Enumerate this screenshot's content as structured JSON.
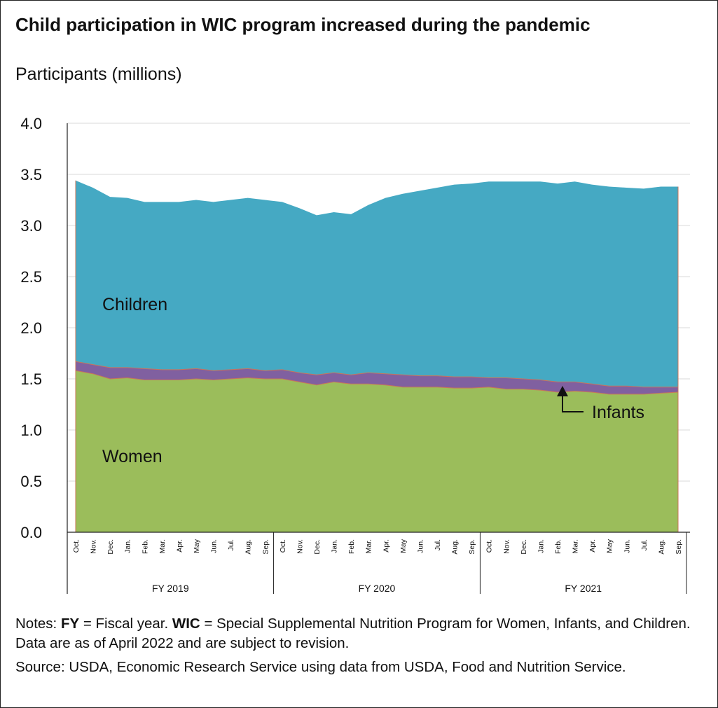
{
  "title": "Child participation in WIC program increased during the pandemic",
  "subtitle": "Participants (millions)",
  "chart_data": {
    "type": "area",
    "stacked": true,
    "ylim": [
      0,
      4.0
    ],
    "yticks": [
      "0.0",
      "0.5",
      "1.0",
      "1.5",
      "2.0",
      "2.5",
      "3.0",
      "3.5",
      "4.0"
    ],
    "grid": true,
    "categories": [
      "Oct.",
      "Nov.",
      "Dec.",
      "Jan.",
      "Feb.",
      "Mar.",
      "Apr.",
      "May",
      "Jun.",
      "Jul.",
      "Aug.",
      "Sep.",
      "Oct.",
      "Nov.",
      "Dec.",
      "Jan.",
      "Feb.",
      "Mar.",
      "Apr.",
      "May",
      "Jun.",
      "Jul.",
      "Aug.",
      "Sep.",
      "Oct.",
      "Nov.",
      "Dec.",
      "Jan.",
      "Feb.",
      "Mar.",
      "Apr.",
      "May",
      "Jun.",
      "Jul.",
      "Aug.",
      "Sep."
    ],
    "groups": [
      {
        "label": "FY 2019",
        "start": 0,
        "end": 11
      },
      {
        "label": "FY 2020",
        "start": 12,
        "end": 23
      },
      {
        "label": "FY 2021",
        "start": 24,
        "end": 35
      }
    ],
    "series": [
      {
        "name": "Women",
        "color": "#9bbd5b",
        "values": [
          1.58,
          1.55,
          1.5,
          1.51,
          1.49,
          1.49,
          1.49,
          1.5,
          1.49,
          1.5,
          1.51,
          1.5,
          1.5,
          1.47,
          1.44,
          1.47,
          1.45,
          1.45,
          1.44,
          1.42,
          1.42,
          1.42,
          1.41,
          1.41,
          1.42,
          1.4,
          1.4,
          1.39,
          1.37,
          1.38,
          1.37,
          1.35,
          1.35,
          1.35,
          1.36,
          1.37
        ]
      },
      {
        "name": "Infants",
        "color": "#8060a0",
        "values": [
          0.09,
          0.09,
          0.11,
          0.1,
          0.11,
          0.1,
          0.1,
          0.1,
          0.09,
          0.09,
          0.09,
          0.08,
          0.09,
          0.09,
          0.1,
          0.09,
          0.09,
          0.11,
          0.11,
          0.12,
          0.11,
          0.11,
          0.11,
          0.11,
          0.09,
          0.11,
          0.1,
          0.1,
          0.1,
          0.09,
          0.08,
          0.08,
          0.08,
          0.07,
          0.06,
          0.05
        ]
      },
      {
        "name": "Children",
        "color": "#45a9c3",
        "values": [
          1.77,
          1.73,
          1.67,
          1.66,
          1.63,
          1.64,
          1.64,
          1.65,
          1.65,
          1.66,
          1.67,
          1.67,
          1.64,
          1.61,
          1.56,
          1.57,
          1.57,
          1.64,
          1.72,
          1.77,
          1.81,
          1.84,
          1.88,
          1.89,
          1.92,
          1.92,
          1.93,
          1.94,
          1.94,
          1.96,
          1.95,
          1.95,
          1.94,
          1.94,
          1.96,
          1.96
        ]
      }
    ],
    "labels": {
      "children": "Children",
      "women": "Women",
      "infants": "Infants"
    }
  },
  "notes": {
    "fy_term": "FY",
    "fy_def": " = Fiscal year. ",
    "wic_term": "WIC",
    "wic_def": " = Special Supplemental Nutrition Program for Women, Infants, and Children. Data are as of April 2022 and are subject to revision.",
    "source": "Source: USDA, Economic Research Service using data from USDA, Food and Nutrition Service.",
    "prefix": "Notes: "
  }
}
